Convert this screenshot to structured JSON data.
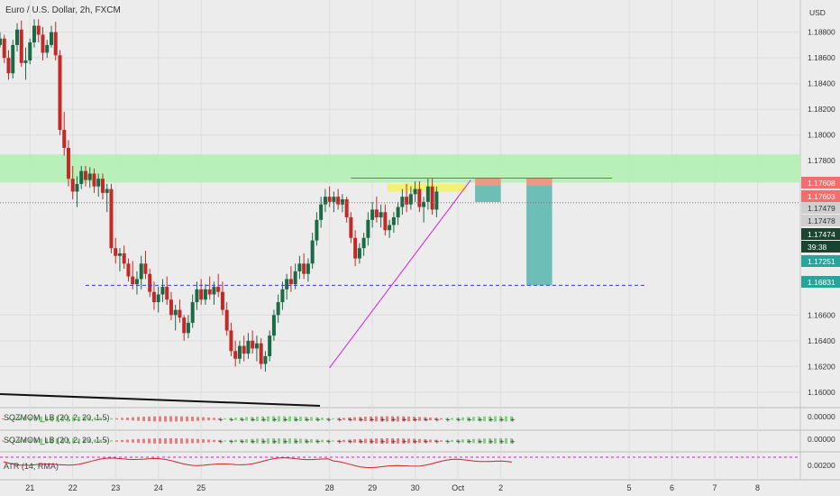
{
  "chart_data": {
    "type": "candlestick",
    "title": "Euro / U.S. Dollar, 2h, FXCM",
    "currency": "USD",
    "ylim": [
      1.1588,
      1.1905
    ],
    "y_ticks": [
      "1.18800",
      "1.18600",
      "1.18400",
      "1.18200",
      "1.18000",
      "1.17800",
      "1.16600",
      "1.16400",
      "1.16200",
      "1.16000"
    ],
    "x_ticks": [
      "21",
      "22",
      "23",
      "24",
      "25",
      "28",
      "29",
      "30",
      "Oct",
      "2",
      "5",
      "6",
      "7",
      "8"
    ],
    "x_tick_days": [
      21,
      22,
      23,
      24,
      25,
      28,
      29,
      30,
      31,
      32,
      35,
      36,
      37,
      38
    ],
    "xlim_days": [
      20.3,
      39.0
    ],
    "price_badges": [
      {
        "value": "1.17608",
        "color": "#f26d6d",
        "text_color": "#ffffff"
      },
      {
        "value": "1.17603",
        "color": "#f26d6d",
        "text_color": "#ffffff"
      },
      {
        "value": "1.17479",
        "color": "#cfcfcf",
        "text_color": "#333333"
      },
      {
        "value": "1.17478",
        "color": "#cfcfcf",
        "text_color": "#333333"
      },
      {
        "value": "1.17474",
        "color": "#1b4332",
        "text_color": "#ffffff"
      },
      {
        "value": "39:38",
        "color": "#1b4332",
        "text_color": "#ffffff"
      },
      {
        "value": "1.17251",
        "color": "#26a69a",
        "text_color": "#ffffff"
      },
      {
        "value": "1.16831",
        "color": "#26a69a",
        "text_color": "#ffffff"
      }
    ],
    "resistance_zone": [
      1.1763,
      1.1785
    ],
    "supply_zone": [
      1.1756,
      1.1762
    ],
    "resistance_line": 1.17665,
    "support_line": 1.16831,
    "trendline": [
      [
        28.0,
        1.1619
      ],
      [
        31.3,
        1.1765
      ]
    ],
    "positions": [
      {
        "x": [
          31.4,
          32.0
        ],
        "stop": [
          1.17608,
          1.17665
        ],
        "target": [
          1.17479,
          1.17608
        ]
      },
      {
        "x": [
          32.6,
          33.2
        ],
        "stop": [
          1.17608,
          1.17665
        ],
        "target": [
          1.16831,
          1.17608
        ]
      }
    ],
    "candles": [
      [
        20.3,
        1.187,
        1.188,
        1.1868,
        1.1875
      ],
      [
        20.4,
        1.1875,
        1.1878,
        1.1856,
        1.186
      ],
      [
        20.5,
        1.186,
        1.1866,
        1.1843,
        1.1848
      ],
      [
        20.6,
        1.1848,
        1.1874,
        1.1844,
        1.187
      ],
      [
        20.7,
        1.187,
        1.1887,
        1.1865,
        1.1882
      ],
      [
        20.8,
        1.1882,
        1.1889,
        1.1853,
        1.1856
      ],
      [
        20.9,
        1.1856,
        1.1868,
        1.1843,
        1.1858
      ],
      [
        21.0,
        1.1858,
        1.1875,
        1.1855,
        1.1872
      ],
      [
        21.1,
        1.1872,
        1.189,
        1.1868,
        1.1885
      ],
      [
        21.2,
        1.1885,
        1.189,
        1.1872,
        1.1878
      ],
      [
        21.3,
        1.1878,
        1.1884,
        1.1858,
        1.1864
      ],
      [
        21.4,
        1.1864,
        1.1874,
        1.186,
        1.187
      ],
      [
        21.5,
        1.187,
        1.1885,
        1.1868,
        1.188
      ],
      [
        21.6,
        1.188,
        1.1888,
        1.1858,
        1.1862
      ],
      [
        21.7,
        1.1862,
        1.1866,
        1.18,
        1.1804
      ],
      [
        21.8,
        1.1804,
        1.1818,
        1.1784,
        1.179
      ],
      [
        21.9,
        1.179,
        1.1796,
        1.176,
        1.1766
      ],
      [
        22.0,
        1.1766,
        1.1776,
        1.175,
        1.1756
      ],
      [
        22.1,
        1.1756,
        1.1768,
        1.1744,
        1.1762
      ],
      [
        22.2,
        1.1762,
        1.1776,
        1.1758,
        1.1772
      ],
      [
        22.3,
        1.1772,
        1.1776,
        1.176,
        1.1765
      ],
      [
        22.4,
        1.1765,
        1.1775,
        1.1759,
        1.177
      ],
      [
        22.5,
        1.177,
        1.1774,
        1.1755,
        1.176
      ],
      [
        22.6,
        1.176,
        1.177,
        1.1752,
        1.1766
      ],
      [
        22.7,
        1.1766,
        1.177,
        1.175,
        1.1755
      ],
      [
        22.8,
        1.1755,
        1.1762,
        1.174,
        1.1758
      ],
      [
        22.9,
        1.1758,
        1.1762,
        1.1708,
        1.1712
      ],
      [
        23.0,
        1.1712,
        1.172,
        1.17,
        1.1706
      ],
      [
        23.1,
        1.1706,
        1.1712,
        1.1694,
        1.1708
      ],
      [
        23.2,
        1.1708,
        1.1714,
        1.1696,
        1.17
      ],
      [
        23.3,
        1.17,
        1.1704,
        1.1686,
        1.169
      ],
      [
        23.4,
        1.169,
        1.1702,
        1.168,
        1.1684
      ],
      [
        23.5,
        1.1684,
        1.1694,
        1.1676,
        1.1688
      ],
      [
        23.6,
        1.1688,
        1.1706,
        1.168,
        1.17
      ],
      [
        23.7,
        1.17,
        1.171,
        1.1688,
        1.1692
      ],
      [
        23.8,
        1.1692,
        1.1696,
        1.1674,
        1.1678
      ],
      [
        23.9,
        1.1678,
        1.1686,
        1.1664,
        1.167
      ],
      [
        24.0,
        1.167,
        1.1682,
        1.1662,
        1.1676
      ],
      [
        24.1,
        1.1676,
        1.1688,
        1.167,
        1.1682
      ],
      [
        24.2,
        1.1682,
        1.169,
        1.1668,
        1.1672
      ],
      [
        24.3,
        1.1672,
        1.1678,
        1.1656,
        1.166
      ],
      [
        24.4,
        1.166,
        1.1668,
        1.1648,
        1.1664
      ],
      [
        24.5,
        1.1664,
        1.1672,
        1.1654,
        1.1658
      ],
      [
        24.6,
        1.1658,
        1.166,
        1.164,
        1.1646
      ],
      [
        24.7,
        1.1646,
        1.166,
        1.1642,
        1.1654
      ],
      [
        24.8,
        1.1654,
        1.1676,
        1.165,
        1.167
      ],
      [
        24.9,
        1.167,
        1.1686,
        1.1664,
        1.168
      ],
      [
        25.0,
        1.168,
        1.1688,
        1.1668,
        1.1672
      ],
      [
        25.1,
        1.1672,
        1.1684,
        1.1668,
        1.168
      ],
      [
        25.2,
        1.168,
        1.169,
        1.1672,
        1.1676
      ],
      [
        25.3,
        1.1676,
        1.1686,
        1.1668,
        1.1682
      ],
      [
        25.4,
        1.1682,
        1.1692,
        1.1674,
        1.1678
      ],
      [
        25.5,
        1.1678,
        1.1686,
        1.166,
        1.1664
      ],
      [
        25.6,
        1.1664,
        1.167,
        1.1644,
        1.1648
      ],
      [
        25.7,
        1.1648,
        1.1654,
        1.1628,
        1.1632
      ],
      [
        25.8,
        1.1632,
        1.164,
        1.162,
        1.1626
      ],
      [
        25.9,
        1.1626,
        1.164,
        1.1622,
        1.1636
      ],
      [
        26.0,
        1.1636,
        1.1644,
        1.1624,
        1.163
      ],
      [
        26.1,
        1.163,
        1.1646,
        1.1626,
        1.164
      ],
      [
        26.2,
        1.164,
        1.1648,
        1.163,
        1.1634
      ],
      [
        26.3,
        1.1634,
        1.1644,
        1.1624,
        1.1638
      ],
      [
        26.4,
        1.1638,
        1.1642,
        1.1618,
        1.1622
      ],
      [
        26.5,
        1.1622,
        1.1632,
        1.1616,
        1.1628
      ],
      [
        26.6,
        1.1628,
        1.1648,
        1.1624,
        1.1644
      ],
      [
        26.7,
        1.1644,
        1.1664,
        1.164,
        1.166
      ],
      [
        26.8,
        1.166,
        1.1676,
        1.1654,
        1.167
      ],
      [
        26.9,
        1.167,
        1.1686,
        1.1664,
        1.168
      ],
      [
        27.0,
        1.168,
        1.1692,
        1.1672,
        1.1688
      ],
      [
        27.1,
        1.1688,
        1.1698,
        1.1678,
        1.1684
      ],
      [
        27.2,
        1.1684,
        1.17,
        1.168,
        1.1694
      ],
      [
        27.3,
        1.1694,
        1.1706,
        1.1688,
        1.17
      ],
      [
        27.4,
        1.17,
        1.1708,
        1.1688,
        1.1692
      ],
      [
        27.5,
        1.1692,
        1.1704,
        1.1686,
        1.17
      ],
      [
        27.6,
        1.17,
        1.1724,
        1.1696,
        1.1718
      ],
      [
        27.7,
        1.1718,
        1.174,
        1.1714,
        1.1734
      ],
      [
        27.8,
        1.1734,
        1.1752,
        1.1728,
        1.1746
      ],
      [
        27.9,
        1.1746,
        1.1758,
        1.174,
        1.1752
      ],
      [
        28.0,
        1.1752,
        1.176,
        1.1744,
        1.1748
      ],
      [
        28.1,
        1.1748,
        1.1756,
        1.174,
        1.1752
      ],
      [
        28.2,
        1.1752,
        1.1758,
        1.1742,
        1.1746
      ],
      [
        28.3,
        1.1746,
        1.1754,
        1.174,
        1.175
      ],
      [
        28.4,
        1.175,
        1.1752,
        1.1732,
        1.1736
      ],
      [
        28.5,
        1.1736,
        1.174,
        1.1716,
        1.172
      ],
      [
        28.6,
        1.172,
        1.1726,
        1.1698,
        1.1704
      ],
      [
        28.7,
        1.1704,
        1.1716,
        1.17,
        1.1712
      ],
      [
        28.8,
        1.1712,
        1.1724,
        1.1706,
        1.172
      ],
      [
        28.9,
        1.172,
        1.174,
        1.1714,
        1.1734
      ],
      [
        29.0,
        1.1734,
        1.1748,
        1.1728,
        1.1742
      ],
      [
        29.1,
        1.1742,
        1.1752,
        1.1732,
        1.1736
      ],
      [
        29.2,
        1.1736,
        1.1746,
        1.1728,
        1.174
      ],
      [
        29.3,
        1.174,
        1.1746,
        1.1722,
        1.1726
      ],
      [
        29.4,
        1.1726,
        1.1734,
        1.172,
        1.173
      ],
      [
        29.5,
        1.173,
        1.174,
        1.1724,
        1.1736
      ],
      [
        29.6,
        1.1736,
        1.1748,
        1.173,
        1.1744
      ],
      [
        29.7,
        1.1744,
        1.1758,
        1.1738,
        1.1752
      ],
      [
        29.8,
        1.1752,
        1.1762,
        1.174,
        1.1746
      ],
      [
        29.9,
        1.1746,
        1.176,
        1.1742,
        1.1754
      ],
      [
        30.0,
        1.1754,
        1.1764,
        1.1748,
        1.1758
      ],
      [
        30.1,
        1.1758,
        1.1764,
        1.174,
        1.1744
      ],
      [
        30.2,
        1.1744,
        1.1752,
        1.1732,
        1.1748
      ],
      [
        30.3,
        1.1748,
        1.1766,
        1.1742,
        1.176
      ],
      [
        30.4,
        1.176,
        1.1766,
        1.1738,
        1.1742
      ],
      [
        30.5,
        1.1742,
        1.176,
        1.1736,
        1.1756
      ]
    ],
    "subpanes": [
      {
        "label": "SQZMOM_LB (20, 2, 20, 1.5)",
        "value": "0.00000",
        "color": "#2196f3"
      },
      {
        "label": "SQZMOM_LB (20, 2, 20, 1.5)",
        "value": "0.00000",
        "color": "#2196f3"
      },
      {
        "label": "ATR (14, RMA)",
        "value": "0.00200",
        "color": "#ff5252"
      }
    ]
  }
}
